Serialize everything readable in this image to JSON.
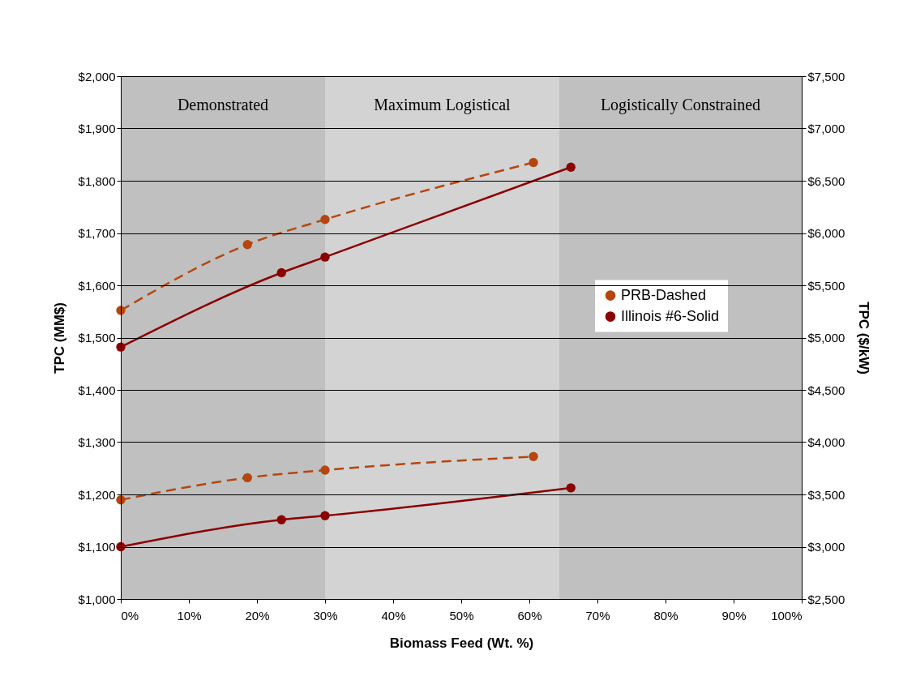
{
  "chart_data": {
    "type": "line",
    "xlabel": "Biomass Feed (Wt. %)",
    "ylabel": "TPC (MM$)",
    "y2label": "TPC ($/kW)",
    "xlim": [
      0,
      100
    ],
    "xticks": [
      {
        "value": 0,
        "label": "0%"
      },
      {
        "value": 10,
        "label": "10%"
      },
      {
        "value": 20,
        "label": "20%"
      },
      {
        "value": 30,
        "label": "30%"
      },
      {
        "value": 40,
        "label": "40%"
      },
      {
        "value": 50,
        "label": "50%"
      },
      {
        "value": 60,
        "label": "60%"
      },
      {
        "value": 70,
        "label": "70%"
      },
      {
        "value": 80,
        "label": "80%"
      },
      {
        "value": 90,
        "label": "90%"
      },
      {
        "value": 100,
        "label": "100%"
      }
    ],
    "ylim": [
      1000,
      2000
    ],
    "yticks": [
      {
        "value": 1000,
        "label": "$1,000"
      },
      {
        "value": 1100,
        "label": "$1,100"
      },
      {
        "value": 1200,
        "label": "$1,200"
      },
      {
        "value": 1300,
        "label": "$1,300"
      },
      {
        "value": 1400,
        "label": "$1,400"
      },
      {
        "value": 1500,
        "label": "$1,500"
      },
      {
        "value": 1600,
        "label": "$1,600"
      },
      {
        "value": 1700,
        "label": "$1,700"
      },
      {
        "value": 1800,
        "label": "$1,800"
      },
      {
        "value": 1900,
        "label": "$1,900"
      },
      {
        "value": 2000,
        "label": "$2,000"
      }
    ],
    "y2lim": [
      2500,
      7500
    ],
    "y2ticks": [
      {
        "value": 2500,
        "label": "$2,500"
      },
      {
        "value": 3000,
        "label": "$3,000"
      },
      {
        "value": 3500,
        "label": "$3,500"
      },
      {
        "value": 4000,
        "label": "$4,000"
      },
      {
        "value": 4500,
        "label": "$4,500"
      },
      {
        "value": 5000,
        "label": "$5,000"
      },
      {
        "value": 5500,
        "label": "$5,500"
      },
      {
        "value": 6000,
        "label": "$6,000"
      },
      {
        "value": 6500,
        "label": "$6,500"
      },
      {
        "value": 7000,
        "label": "$7,000"
      },
      {
        "value": 7500,
        "label": "$7,500"
      }
    ],
    "series": [
      {
        "name": "PRB-Dashed",
        "color": "#b5460f",
        "line_style": "dashed",
        "x": [
          0,
          18.6,
          30,
          60.6
        ],
        "values": [
          1552,
          1678,
          1726,
          1835
        ]
      },
      {
        "name": "Illinois #6-Solid",
        "color": "#8b0000",
        "line_style": "solid",
        "x": [
          0,
          23.6,
          30,
          66.1
        ],
        "values": [
          1482,
          1624,
          1654,
          1826
        ]
      },
      {
        "color": "#b5460f",
        "line_style": "dashed",
        "axis": "y2",
        "x": [
          0,
          18.6,
          30,
          60.6
        ],
        "values": [
          3448,
          3660,
          3733,
          3862
        ]
      },
      {
        "color": "#8b0000",
        "line_style": "solid",
        "axis": "y2",
        "x": [
          0,
          23.6,
          30,
          66.1
        ],
        "values": [
          3000,
          3258,
          3297,
          3563
        ]
      }
    ],
    "bands": [
      {
        "axis": "x",
        "from": 0,
        "to": 30,
        "label": "Demonstrated",
        "color": "#c0c0c0"
      },
      {
        "axis": "x",
        "from": 30,
        "to": 64.4,
        "label": "Maximum Logistical",
        "color": "#d3d3d3"
      },
      {
        "axis": "x",
        "from": 64.4,
        "to": 100,
        "label": "Logistically Constrained",
        "color": "#c0c0c0"
      }
    ],
    "marker": "circle",
    "grid": "y",
    "legend": "right"
  }
}
